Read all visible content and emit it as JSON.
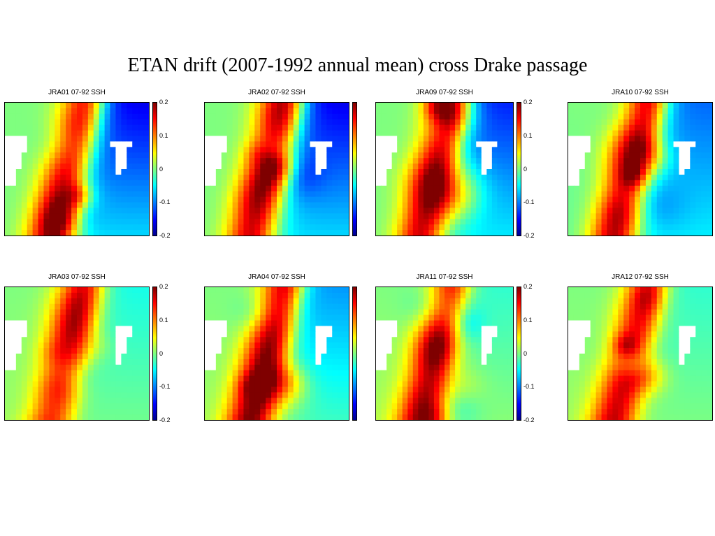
{
  "title": "ETAN drift (2007-1992 annual mean) cross Drake passage",
  "colors": {
    "scale": [
      "#00008f",
      "#0000ff",
      "#00ffff",
      "#7fff7f",
      "#ffff00",
      "#ff0000",
      "#7f0000"
    ],
    "land": "#ffffff"
  },
  "chart_data": [
    {
      "type": "heatmap",
      "title": "JRA01 07-92 SSH",
      "clim": [
        -0.2,
        0.2
      ],
      "colorbar_ticks": [
        "0.2",
        "0.1",
        "0",
        "-0.1",
        "-0.2"
      ],
      "eastern_field": -0.16,
      "central_field": 0.18,
      "southern_field": 0.0,
      "summary": "strong positive SSH band with negative (blue) field to the east"
    },
    {
      "type": "heatmap",
      "title": "JRA02 07-92 SSH",
      "clim": [
        -0.2,
        0.2
      ],
      "colorbar_ticks": [],
      "eastern_field": -0.16,
      "central_field": 0.17,
      "southern_field": 0.0
    },
    {
      "type": "heatmap",
      "title": "JRA09 07-92 SSH",
      "clim": [
        -0.2,
        0.2
      ],
      "colorbar_ticks": [
        "0.2",
        "0.1",
        "0",
        "-0.1",
        "-0.2"
      ],
      "eastern_field": -0.14,
      "central_field": 0.17,
      "southern_field": 0.0
    },
    {
      "type": "heatmap",
      "title": "JRA10 07-92 SSH",
      "clim": [
        -0.2,
        0.2
      ],
      "colorbar_ticks": [],
      "eastern_field": -0.11,
      "central_field": 0.19,
      "southern_field": -0.02
    },
    {
      "type": "heatmap",
      "title": "JRA03 07-92 SSH",
      "clim": [
        -0.2,
        0.2
      ],
      "colorbar_ticks": [
        "0.2",
        "0.1",
        "0",
        "-0.1",
        "-0.2"
      ],
      "eastern_field": -0.04,
      "central_field": 0.16,
      "southern_field": 0.02
    },
    {
      "type": "heatmap",
      "title": "JRA04 07-92 SSH",
      "clim": [
        -0.2,
        0.2
      ],
      "colorbar_ticks": [],
      "eastern_field": -0.09,
      "central_field": 0.2,
      "southern_field": 0.02
    },
    {
      "type": "heatmap",
      "title": "JRA11 07-92 SSH",
      "clim": [
        -0.2,
        0.2
      ],
      "colorbar_ticks": [
        "0.2",
        "0.1",
        "0",
        "-0.1",
        "-0.2"
      ],
      "eastern_field": -0.03,
      "central_field": 0.17,
      "southern_field": 0.03
    },
    {
      "type": "heatmap",
      "title": "JRA12 07-92 SSH",
      "clim": [
        -0.2,
        0.2
      ],
      "colorbar_ticks": [],
      "eastern_field": -0.03,
      "central_field": 0.17,
      "southern_field": 0.02
    }
  ]
}
